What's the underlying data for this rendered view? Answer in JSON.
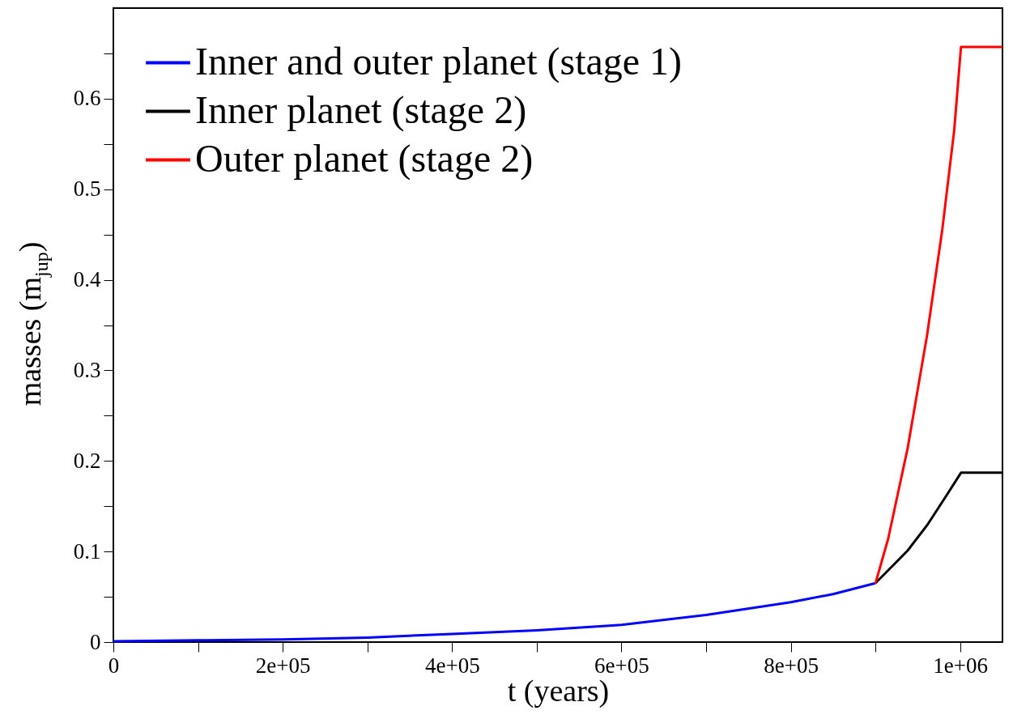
{
  "chart_data": {
    "type": "line",
    "xlabel": "t (years)",
    "ylabel": "masses (m$_{jup}$)",
    "legend": "top left",
    "line_style": "solid",
    "marker": "none",
    "grid": false,
    "xlim": [
      0,
      1050000
    ],
    "ylim": [
      0,
      0.7
    ],
    "xticks": [
      0,
      {
        "value": 100000,
        "label": null
      },
      {
        "value": 200000,
        "label": "2e+05"
      },
      {
        "value": 300000,
        "label": null
      },
      {
        "value": 400000,
        "label": "4e+05"
      },
      {
        "value": 500000,
        "label": null
      },
      {
        "value": 600000,
        "label": "6e+05"
      },
      {
        "value": 700000,
        "label": null
      },
      {
        "value": 800000,
        "label": "8e+05"
      },
      {
        "value": 900000,
        "label": null
      },
      {
        "value": 1000000,
        "label": "1e+06"
      }
    ],
    "yticks": [
      0,
      {
        "value": 0.05,
        "label": null
      },
      0.1,
      {
        "value": 0.15,
        "label": null
      },
      0.2,
      {
        "value": 0.25,
        "label": null
      },
      0.3,
      {
        "value": 0.35,
        "label": null
      },
      0.4,
      {
        "value": 0.45,
        "label": null
      },
      0.5,
      {
        "value": 0.55,
        "label": null
      },
      0.6,
      {
        "value": 0.65,
        "label": null
      }
    ],
    "series": [
      {
        "name": "Inner and outer planet (stage 1)",
        "color": "#0000ff",
        "x": [
          0,
          100000,
          200000,
          300000,
          400000,
          500000,
          600000,
          700000,
          800000,
          850000,
          900000
        ],
        "values": [
          0.001,
          0.002,
          0.003,
          0.005,
          0.009,
          0.013,
          0.019,
          0.03,
          0.044,
          0.053,
          0.065
        ]
      },
      {
        "name": "Inner planet (stage 2)",
        "color": "#000000",
        "x": [
          900000,
          938000,
          961000,
          984000,
          1001000,
          1050000
        ],
        "values": [
          0.065,
          0.101,
          0.129,
          0.162,
          0.187,
          0.187
        ]
      },
      {
        "name": "Outer planet (stage 2)",
        "color": "#ff0000",
        "x": [
          900000,
          915000,
          938000,
          961000,
          979000,
          993000,
          1001000,
          1050000
        ],
        "values": [
          0.065,
          0.114,
          0.214,
          0.339,
          0.456,
          0.565,
          0.657,
          0.657
        ]
      }
    ]
  }
}
